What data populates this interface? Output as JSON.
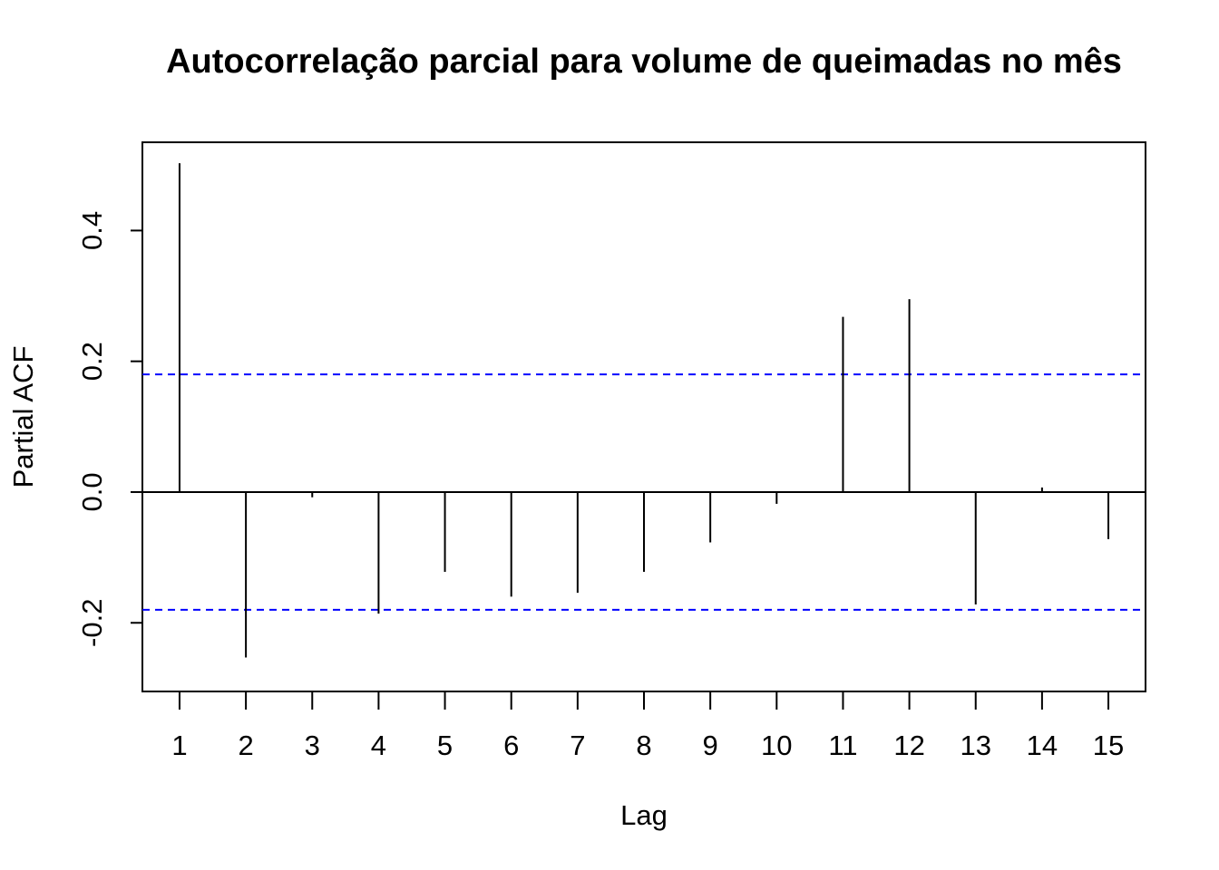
{
  "chart_data": {
    "type": "bar",
    "title": "Autocorrelação parcial para volume de queimadas no mês",
    "xlabel": "Lag",
    "ylabel": "Partial ACF",
    "x": [
      1,
      2,
      3,
      4,
      5,
      6,
      7,
      8,
      9,
      10,
      11,
      12,
      13,
      14,
      15
    ],
    "x_tick_labels": [
      "1",
      "2",
      "3",
      "4",
      "5",
      "6",
      "7",
      "8",
      "9",
      "10",
      "11",
      "12",
      "13",
      "14",
      "15"
    ],
    "values": [
      0.503,
      -0.253,
      -0.008,
      -0.186,
      -0.122,
      -0.16,
      -0.154,
      -0.122,
      -0.077,
      -0.018,
      0.268,
      0.295,
      -0.172,
      0.007,
      -0.072
    ],
    "xlim": [
      0.44,
      15.56
    ],
    "ylim": [
      -0.305,
      0.535
    ],
    "y_ticks": [
      -0.2,
      0.0,
      0.2,
      0.4
    ],
    "y_tick_labels": [
      "-0.2",
      "0.0",
      "0.2",
      "0.4"
    ],
    "confidence_bound": 0.18,
    "grid": false,
    "colors": {
      "bars": "#000000",
      "confidence_lines": "#0000ff",
      "zero_line": "#000000"
    }
  }
}
